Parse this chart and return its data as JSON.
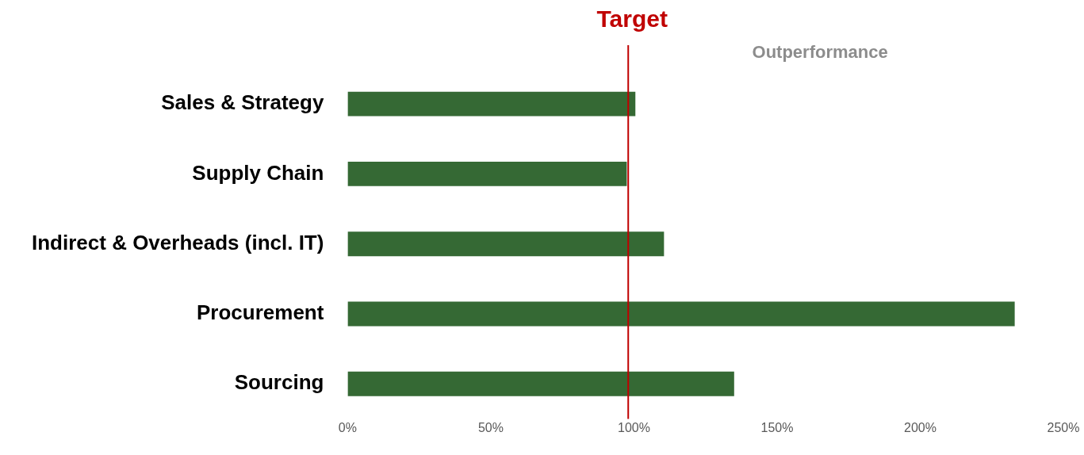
{
  "chart_data": {
    "type": "bar",
    "orientation": "horizontal",
    "categories": [
      "Sales & Strategy",
      "Supply Chain",
      "Indirect & Overheads (incl. IT)",
      "Procurement",
      "Sourcing"
    ],
    "values": [
      100.5,
      97.5,
      110.5,
      233,
      135
    ],
    "color": "#356934",
    "xlim": [
      0,
      250
    ],
    "xticks": [
      {
        "value": 0,
        "label": "0%"
      },
      {
        "value": 50,
        "label": "50%"
      },
      {
        "value": 100,
        "label": "100%"
      },
      {
        "value": 150,
        "label": "150%"
      },
      {
        "value": 200,
        "label": "200%"
      },
      {
        "value": 250,
        "label": "250%"
      }
    ],
    "grid": false,
    "legend": false,
    "ref_lines": [
      {
        "axis": "x",
        "value": 98,
        "label": "Target",
        "color": "#c00000"
      }
    ],
    "annotations": [
      "Outperformance"
    ]
  }
}
